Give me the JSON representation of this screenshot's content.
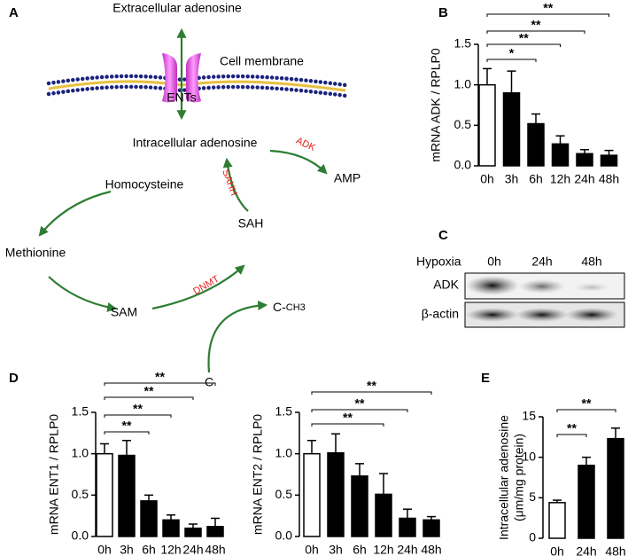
{
  "diagram": {
    "panel_label": "A",
    "extracellular": "Extracellular adenosine",
    "membrane": "Cell membrane",
    "ents": "ENTs",
    "intracellular": "Intracellular adenosine",
    "adk": "ADK",
    "amp": "AMP",
    "homocysteine": "Homocysteine",
    "sahh": "SAHH",
    "sah": "SAH",
    "methionine": "Methionine",
    "sam": "SAM",
    "dnmt": "DNMT",
    "methyl_carrier": "C-",
    "methyl": "CH3",
    "carrier": "C"
  },
  "blot": {
    "panel_label": "C",
    "condition": "Hypoxia",
    "lanes": [
      "0h",
      "24h",
      "48h"
    ],
    "rows": [
      "ADK",
      "β-actin"
    ]
  },
  "chart_data": [
    {
      "type": "bar",
      "panel_label": "B",
      "ylabel": [
        "mRNA ADK / RPLP0"
      ],
      "categories": [
        "0h",
        "3h",
        "6h",
        "12h",
        "24h",
        "48h"
      ],
      "values": [
        1.0,
        0.9,
        0.52,
        0.27,
        0.15,
        0.13
      ],
      "errors": [
        0.2,
        0.27,
        0.12,
        0.1,
        0.05,
        0.06
      ],
      "colors": [
        "#ffffff",
        "#000000",
        "#000000",
        "#000000",
        "#000000",
        "#000000"
      ],
      "ylim": [
        0,
        1.5
      ],
      "yticks": [
        {
          "value": 0,
          "label": "0.0"
        },
        0.5,
        {
          "value": 1,
          "label": "1.0"
        },
        1.5
      ],
      "comparisons": [
        {
          "from": 0,
          "to": 2,
          "label": "*"
        },
        {
          "from": 0,
          "to": 3,
          "label": "**"
        },
        {
          "from": 0,
          "to": 4,
          "label": "**"
        },
        {
          "from": 0,
          "to": 5,
          "label": "**"
        }
      ]
    },
    {
      "type": "bar",
      "panel_label": "D",
      "ylabel": [
        "mRNA ENT1 / RPLP0"
      ],
      "categories": [
        "0h",
        "3h",
        "6h",
        "12h",
        "24h",
        "48h"
      ],
      "values": [
        1.0,
        0.98,
        0.43,
        0.2,
        0.1,
        0.12
      ],
      "errors": [
        0.12,
        0.18,
        0.07,
        0.06,
        0.05,
        0.1
      ],
      "colors": [
        "#ffffff",
        "#000000",
        "#000000",
        "#000000",
        "#000000",
        "#000000"
      ],
      "ylim": [
        0,
        1.5
      ],
      "yticks": [
        {
          "value": 0,
          "label": "0.0"
        },
        0.5,
        {
          "value": 1,
          "label": "1.0"
        },
        1.5
      ],
      "comparisons": [
        {
          "from": 0,
          "to": 2,
          "label": "**"
        },
        {
          "from": 0,
          "to": 3,
          "label": "**"
        },
        {
          "from": 0,
          "to": 4,
          "label": "**"
        },
        {
          "from": 0,
          "to": 5,
          "label": "**"
        }
      ]
    },
    {
      "type": "bar",
      "ylabel": [
        "mRNA ENT2 / RPLP0"
      ],
      "categories": [
        "0h",
        "3h",
        "6h",
        "12h",
        "24h",
        "48h"
      ],
      "values": [
        1.0,
        1.01,
        0.73,
        0.51,
        0.22,
        0.2
      ],
      "errors": [
        0.16,
        0.23,
        0.15,
        0.25,
        0.11,
        0.04
      ],
      "colors": [
        "#ffffff",
        "#000000",
        "#000000",
        "#000000",
        "#000000",
        "#000000"
      ],
      "ylim": [
        0,
        1.5
      ],
      "yticks": [
        {
          "value": 0,
          "label": "0.0"
        },
        0.5,
        {
          "value": 1,
          "label": "1.0"
        },
        1.5
      ],
      "comparisons": [
        {
          "from": 0,
          "to": 3,
          "label": "**"
        },
        {
          "from": 0,
          "to": 4,
          "label": "**"
        },
        {
          "from": 0,
          "to": 5,
          "label": "**"
        }
      ]
    },
    {
      "type": "bar",
      "panel_label": "E",
      "ylabel": [
        "Intracellular adenosine",
        "(μm/mg protein)"
      ],
      "categories": [
        "0h",
        "24h",
        "48h"
      ],
      "values": [
        4.4,
        9.0,
        12.3
      ],
      "errors": [
        0.3,
        1.0,
        1.3
      ],
      "colors": [
        "#ffffff",
        "#000000",
        "#000000"
      ],
      "ylim": [
        0,
        15
      ],
      "yticks": [
        0,
        5,
        10,
        15
      ],
      "comparisons": [
        {
          "from": 0,
          "to": 1,
          "label": "**"
        },
        {
          "from": 0,
          "to": 2,
          "label": "**"
        }
      ]
    }
  ]
}
